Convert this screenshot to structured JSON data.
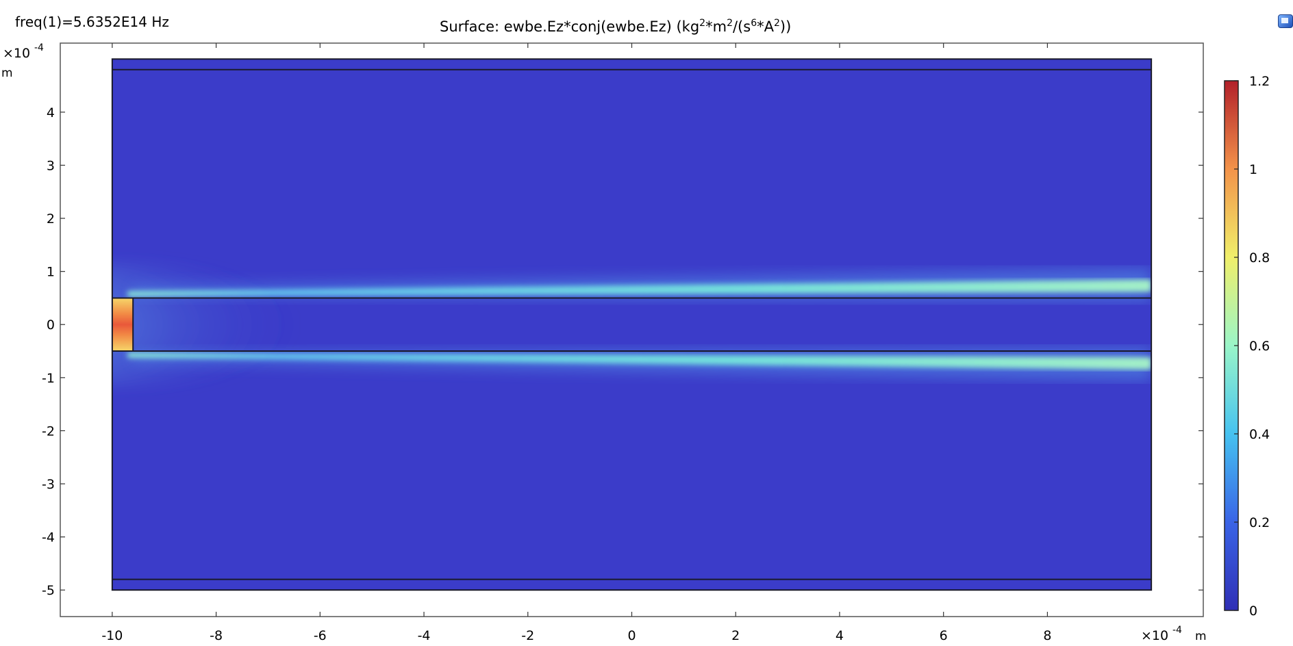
{
  "header": {
    "freq_label": "freq(1)=5.6352E14 Hz",
    "title_prefix": "Surface: ewbe.Ez*conj(ewbe.Ez) (kg",
    "title_sup1": "2",
    "title_mid1": "*m",
    "title_sup2": "2",
    "title_mid2": "/(s",
    "title_sup3": "6",
    "title_mid3": "*A",
    "title_sup4": "2",
    "title_suffix": "))"
  },
  "toolbar": {
    "icon": "display-window-icon"
  },
  "chart_data": {
    "type": "heatmap",
    "x_axis": {
      "range": [
        -11,
        11
      ],
      "ticks": [
        -10,
        -8,
        -6,
        -4,
        -2,
        0,
        2,
        4,
        6,
        8
      ],
      "tick_labels": [
        "-10",
        "-8",
        "-6",
        "-4",
        "-2",
        "0",
        "2",
        "4",
        "6",
        "8"
      ],
      "multiplier_label": "×10",
      "multiplier_exp": "-4",
      "unit_label": "m"
    },
    "y_axis": {
      "range": [
        -5.5,
        5.3
      ],
      "ticks": [
        -5,
        -4,
        -3,
        -2,
        -1,
        0,
        1,
        2,
        3,
        4
      ],
      "tick_labels": [
        "-5",
        "-4",
        "-3",
        "-2",
        "-1",
        "0",
        "1",
        "2",
        "3",
        "4"
      ],
      "multiplier_label": "×10",
      "multiplier_exp": "-4",
      "unit_label": "m"
    },
    "domain": {
      "x_range": [
        -10,
        10
      ],
      "y_range": [
        -5,
        5
      ],
      "layer_lines_y": [
        4.8,
        -4.8,
        0.5,
        -0.5
      ],
      "source_block": {
        "x_range": [
          -10,
          -9.6
        ],
        "y_range": [
          -0.5,
          0.5
        ]
      }
    },
    "beams": [
      {
        "y_start": 0.55,
        "y_end": 0.72,
        "peak_value": 0.6
      },
      {
        "y_start": -0.55,
        "y_end": -0.72,
        "peak_value": 0.6
      }
    ],
    "background_value": 0.05,
    "source_peak_value": 1.05,
    "colorbar": {
      "range": [
        0,
        1.2
      ],
      "ticks": [
        0,
        0.2,
        0.4,
        0.6,
        0.8,
        1,
        1.2
      ],
      "tick_labels": [
        "0",
        "0.2",
        "0.4",
        "0.6",
        "0.8",
        "1",
        "1.2"
      ],
      "colormap": [
        "#2f2fb5",
        "#3a64e6",
        "#46c2f0",
        "#9af5c8",
        "#f0ef6a",
        "#f3934a",
        "#b2202a"
      ]
    },
    "colors": {
      "background_field": "#3b3cc9",
      "boundary": "#1a1a2a",
      "axes": "#000000"
    }
  }
}
